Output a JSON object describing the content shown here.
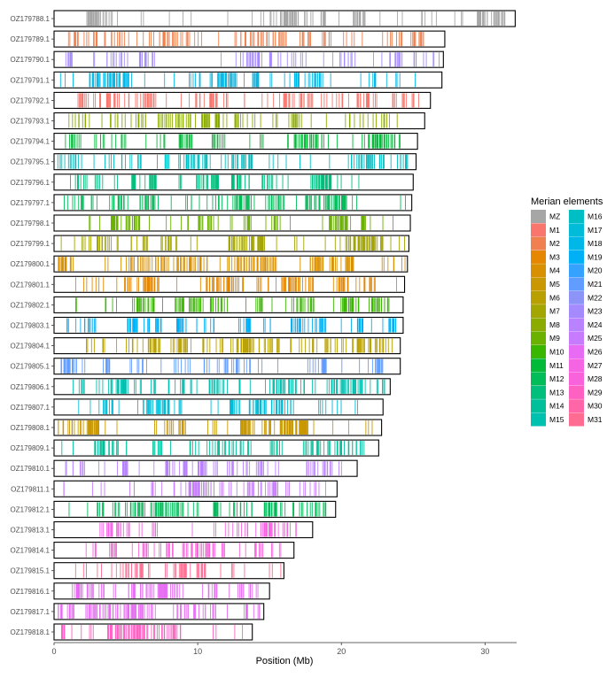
{
  "chart_data": {
    "type": "chromosome-band-plot",
    "xlabel": "Position (Mb)",
    "xlim": [
      0,
      32.2
    ],
    "x_ticks": [
      0,
      10,
      20,
      30
    ],
    "legend_title": "Merian elements",
    "legend_items": [
      {
        "label": "MZ",
        "color": "#a6a6a6"
      },
      {
        "label": "M1",
        "color": "#f8766d"
      },
      {
        "label": "M2",
        "color": "#f0804f"
      },
      {
        "label": "M3",
        "color": "#e58700"
      },
      {
        "label": "M4",
        "color": "#d89000"
      },
      {
        "label": "M5",
        "color": "#c99800"
      },
      {
        "label": "M6",
        "color": "#b8a000"
      },
      {
        "label": "M7",
        "color": "#a3a500"
      },
      {
        "label": "M8",
        "color": "#8bab00"
      },
      {
        "label": "M9",
        "color": "#6bb100"
      },
      {
        "label": "M10",
        "color": "#39b600"
      },
      {
        "label": "M11",
        "color": "#00ba38"
      },
      {
        "label": "M12",
        "color": "#00bc59"
      },
      {
        "label": "M13",
        "color": "#00bf7d"
      },
      {
        "label": "M14",
        "color": "#00c09b"
      },
      {
        "label": "M15",
        "color": "#00c0af"
      },
      {
        "label": "M16",
        "color": "#00bfc4"
      },
      {
        "label": "M17",
        "color": "#00bcd8"
      },
      {
        "label": "M18",
        "color": "#00b8e7"
      },
      {
        "label": "M19",
        "color": "#00b0f6"
      },
      {
        "label": "M20",
        "color": "#35a2ff"
      },
      {
        "label": "M21",
        "color": "#619cff"
      },
      {
        "label": "M22",
        "color": "#8c94f8"
      },
      {
        "label": "M23",
        "color": "#a58aff"
      },
      {
        "label": "M24",
        "color": "#b983ff"
      },
      {
        "label": "M25",
        "color": "#c77cff"
      },
      {
        "label": "M26",
        "color": "#e76bf3"
      },
      {
        "label": "M27",
        "color": "#f564e3"
      },
      {
        "label": "M28",
        "color": "#fa62db"
      },
      {
        "label": "M29",
        "color": "#ff61c3"
      },
      {
        "label": "M30",
        "color": "#ff66a8"
      },
      {
        "label": "M31",
        "color": "#ff6c91"
      }
    ],
    "chromosomes": [
      {
        "name": "OZ179788.1",
        "length_mb": 32.1,
        "element": "MZ",
        "start_mb": 0.5,
        "end_mb": 31.4,
        "density": 120
      },
      {
        "name": "OZ179789.1",
        "length_mb": 27.2,
        "element": "M2",
        "start_mb": 0.8,
        "end_mb": 25.8,
        "density": 110
      },
      {
        "name": "OZ179790.1",
        "length_mb": 27.1,
        "element": "M23",
        "start_mb": 0.3,
        "end_mb": 26.8,
        "density": 90
      },
      {
        "name": "OZ179791.1",
        "length_mb": 27.0,
        "element": "M18",
        "start_mb": 0.3,
        "end_mb": 26.6,
        "density": 120
      },
      {
        "name": "OZ179792.1",
        "length_mb": 26.2,
        "element": "M1",
        "start_mb": 0.5,
        "end_mb": 25.8,
        "density": 130
      },
      {
        "name": "OZ179793.1",
        "length_mb": 25.8,
        "element": "M8",
        "start_mb": 1.0,
        "end_mb": 24.0,
        "density": 100
      },
      {
        "name": "OZ179794.1",
        "length_mb": 25.3,
        "element": "M11",
        "start_mb": 0.4,
        "end_mb": 25.0,
        "density": 120
      },
      {
        "name": "OZ179795.1",
        "length_mb": 25.2,
        "element": "M16",
        "start_mb": 0.2,
        "end_mb": 24.6,
        "density": 110
      },
      {
        "name": "OZ179796.1",
        "length_mb": 25.0,
        "element": "M13",
        "start_mb": 1.0,
        "end_mb": 24.5,
        "density": 110
      },
      {
        "name": "OZ179797.1",
        "length_mb": 24.9,
        "element": "M12",
        "start_mb": 0.3,
        "end_mb": 24.5,
        "density": 120
      },
      {
        "name": "OZ179798.1",
        "length_mb": 24.8,
        "element": "M9",
        "start_mb": 0.5,
        "end_mb": 24.4,
        "density": 120
      },
      {
        "name": "OZ179799.1",
        "length_mb": 24.7,
        "element": "M7",
        "start_mb": 0.5,
        "end_mb": 24.5,
        "density": 130
      },
      {
        "name": "OZ179800.1",
        "length_mb": 24.6,
        "element": "M4",
        "start_mb": 0.3,
        "end_mb": 24.5,
        "density": 130
      },
      {
        "name": "OZ179801.1",
        "length_mb": 24.4,
        "element": "M3",
        "start_mb": 0.5,
        "end_mb": 24.0,
        "density": 130
      },
      {
        "name": "OZ179802.1",
        "length_mb": 24.3,
        "element": "M10",
        "start_mb": 0.5,
        "end_mb": 24.0,
        "density": 120
      },
      {
        "name": "OZ179803.1",
        "length_mb": 24.3,
        "element": "M19",
        "start_mb": 0.5,
        "end_mb": 24.0,
        "density": 110
      },
      {
        "name": "OZ179804.1",
        "length_mb": 24.1,
        "element": "M6",
        "start_mb": 2.2,
        "end_mb": 23.8,
        "density": 130
      },
      {
        "name": "OZ179805.1",
        "length_mb": 24.1,
        "element": "M21",
        "start_mb": 0.5,
        "end_mb": 23.5,
        "density": 100
      },
      {
        "name": "OZ179806.1",
        "length_mb": 23.4,
        "element": "M15",
        "start_mb": 0.3,
        "end_mb": 23.0,
        "density": 120
      },
      {
        "name": "OZ179807.1",
        "length_mb": 22.9,
        "element": "M17",
        "start_mb": 0.5,
        "end_mb": 22.7,
        "density": 110
      },
      {
        "name": "OZ179808.1",
        "length_mb": 22.8,
        "element": "M5",
        "start_mb": 0.3,
        "end_mb": 22.5,
        "density": 130
      },
      {
        "name": "OZ179809.1",
        "length_mb": 22.6,
        "element": "M14",
        "start_mb": 0.5,
        "end_mb": 22.3,
        "density": 110
      },
      {
        "name": "OZ179810.1",
        "length_mb": 21.1,
        "element": "M24",
        "start_mb": 0.8,
        "end_mb": 20.5,
        "density": 100
      },
      {
        "name": "OZ179811.1",
        "length_mb": 19.7,
        "element": "M25",
        "start_mb": 0.3,
        "end_mb": 19.5,
        "density": 80
      },
      {
        "name": "OZ179812.1",
        "length_mb": 19.6,
        "element": "M12",
        "start_mb": 0.3,
        "end_mb": 19.3,
        "density": 110
      },
      {
        "name": "OZ179813.1",
        "length_mb": 18.0,
        "element": "M27",
        "start_mb": 3.0,
        "end_mb": 17.7,
        "density": 60
      },
      {
        "name": "OZ179814.1",
        "length_mb": 16.7,
        "element": "M28",
        "start_mb": 2.0,
        "end_mb": 16.4,
        "density": 70
      },
      {
        "name": "OZ179815.1",
        "length_mb": 16.0,
        "element": "M31",
        "start_mb": 1.5,
        "end_mb": 15.8,
        "density": 60
      },
      {
        "name": "OZ179816.1",
        "length_mb": 15.0,
        "element": "M26",
        "start_mb": 0.8,
        "end_mb": 14.7,
        "density": 80
      },
      {
        "name": "OZ179817.1",
        "length_mb": 14.6,
        "element": "M26",
        "start_mb": 0.3,
        "end_mb": 14.3,
        "density": 90
      },
      {
        "name": "OZ179818.1",
        "length_mb": 13.8,
        "element": "M29",
        "start_mb": 0.5,
        "end_mb": 13.5,
        "density": 80
      }
    ]
  }
}
